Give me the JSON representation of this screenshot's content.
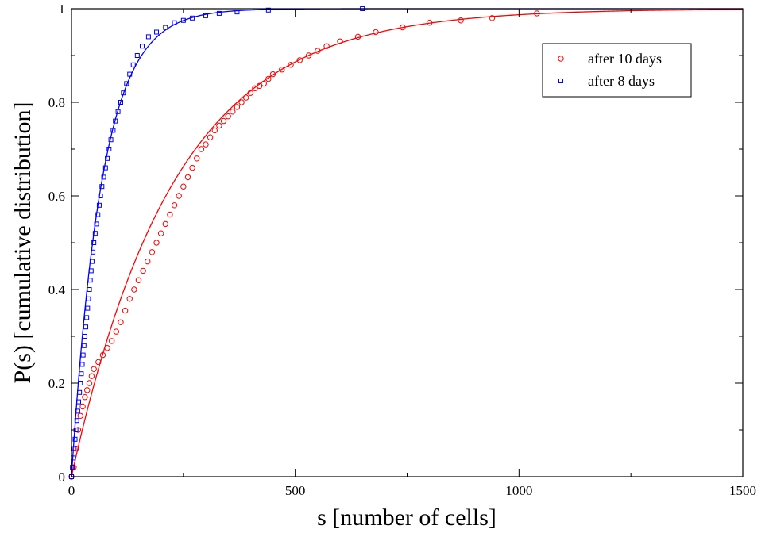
{
  "chart_data": {
    "type": "scatter",
    "title": "",
    "xlabel": "s [number of cells]",
    "ylabel": "P(s) [cumulative distribution]",
    "xlim": [
      0,
      1500
    ],
    "ylim": [
      0,
      1
    ],
    "x_ticks": [
      "0",
      "500",
      "1000",
      "1500"
    ],
    "y_ticks": [
      "0",
      "0.2",
      "0.4",
      "0.6",
      "0.8",
      "1"
    ],
    "grid": false,
    "legend_position": "top-right",
    "series": [
      {
        "name": "after 10 days",
        "marker": "circle",
        "color": "#ff0000",
        "points": [
          [
            0,
            0
          ],
          [
            5,
            0.02
          ],
          [
            10,
            0.06
          ],
          [
            15,
            0.1
          ],
          [
            20,
            0.13
          ],
          [
            25,
            0.15
          ],
          [
            30,
            0.17
          ],
          [
            35,
            0.185
          ],
          [
            40,
            0.2
          ],
          [
            45,
            0.215
          ],
          [
            50,
            0.23
          ],
          [
            60,
            0.245
          ],
          [
            70,
            0.26
          ],
          [
            80,
            0.275
          ],
          [
            90,
            0.29
          ],
          [
            100,
            0.31
          ],
          [
            110,
            0.33
          ],
          [
            120,
            0.355
          ],
          [
            130,
            0.38
          ],
          [
            140,
            0.4
          ],
          [
            150,
            0.42
          ],
          [
            160,
            0.44
          ],
          [
            170,
            0.46
          ],
          [
            180,
            0.48
          ],
          [
            190,
            0.5
          ],
          [
            200,
            0.52
          ],
          [
            210,
            0.54
          ],
          [
            220,
            0.56
          ],
          [
            230,
            0.58
          ],
          [
            240,
            0.6
          ],
          [
            250,
            0.62
          ],
          [
            260,
            0.64
          ],
          [
            270,
            0.66
          ],
          [
            280,
            0.68
          ],
          [
            290,
            0.7
          ],
          [
            300,
            0.71
          ],
          [
            310,
            0.725
          ],
          [
            320,
            0.74
          ],
          [
            330,
            0.75
          ],
          [
            340,
            0.76
          ],
          [
            350,
            0.77
          ],
          [
            360,
            0.78
          ],
          [
            370,
            0.79
          ],
          [
            380,
            0.8
          ],
          [
            390,
            0.81
          ],
          [
            400,
            0.82
          ],
          [
            410,
            0.83
          ],
          [
            420,
            0.835
          ],
          [
            430,
            0.84
          ],
          [
            440,
            0.85
          ],
          [
            450,
            0.86
          ],
          [
            470,
            0.87
          ],
          [
            490,
            0.88
          ],
          [
            510,
            0.89
          ],
          [
            530,
            0.9
          ],
          [
            550,
            0.91
          ],
          [
            570,
            0.92
          ],
          [
            600,
            0.93
          ],
          [
            640,
            0.94
          ],
          [
            680,
            0.95
          ],
          [
            740,
            0.96
          ],
          [
            800,
            0.97
          ],
          [
            870,
            0.975
          ],
          [
            940,
            0.98
          ],
          [
            1040,
            0.99
          ]
        ],
        "fit_curve": {
          "form": "1 - exp(-s/s0)",
          "s0": 230
        }
      },
      {
        "name": "after 8 days",
        "marker": "square",
        "color": "#0000ff",
        "points": [
          [
            0,
            0
          ],
          [
            2,
            0.02
          ],
          [
            4,
            0.04
          ],
          [
            6,
            0.06
          ],
          [
            8,
            0.08
          ],
          [
            10,
            0.1
          ],
          [
            12,
            0.12
          ],
          [
            14,
            0.14
          ],
          [
            16,
            0.16
          ],
          [
            18,
            0.18
          ],
          [
            20,
            0.2
          ],
          [
            22,
            0.22
          ],
          [
            24,
            0.24
          ],
          [
            26,
            0.26
          ],
          [
            28,
            0.28
          ],
          [
            30,
            0.3
          ],
          [
            32,
            0.32
          ],
          [
            34,
            0.34
          ],
          [
            36,
            0.36
          ],
          [
            38,
            0.38
          ],
          [
            40,
            0.4
          ],
          [
            42,
            0.42
          ],
          [
            44,
            0.44
          ],
          [
            46,
            0.46
          ],
          [
            48,
            0.48
          ],
          [
            50,
            0.5
          ],
          [
            53,
            0.52
          ],
          [
            56,
            0.54
          ],
          [
            59,
            0.56
          ],
          [
            62,
            0.58
          ],
          [
            65,
            0.6
          ],
          [
            68,
            0.62
          ],
          [
            72,
            0.64
          ],
          [
            76,
            0.66
          ],
          [
            80,
            0.68
          ],
          [
            84,
            0.7
          ],
          [
            88,
            0.72
          ],
          [
            93,
            0.74
          ],
          [
            98,
            0.76
          ],
          [
            104,
            0.78
          ],
          [
            110,
            0.8
          ],
          [
            116,
            0.82
          ],
          [
            123,
            0.84
          ],
          [
            130,
            0.86
          ],
          [
            138,
            0.88
          ],
          [
            147,
            0.9
          ],
          [
            158,
            0.92
          ],
          [
            172,
            0.94
          ],
          [
            190,
            0.95
          ],
          [
            210,
            0.96
          ],
          [
            230,
            0.97
          ],
          [
            250,
            0.975
          ],
          [
            270,
            0.98
          ],
          [
            300,
            0.985
          ],
          [
            330,
            0.99
          ],
          [
            370,
            0.993
          ],
          [
            440,
            0.997
          ],
          [
            650,
            1.0
          ]
        ],
        "fit_curve": {
          "form": "1 - exp(-s/s0)",
          "s0": 68
        }
      }
    ]
  }
}
